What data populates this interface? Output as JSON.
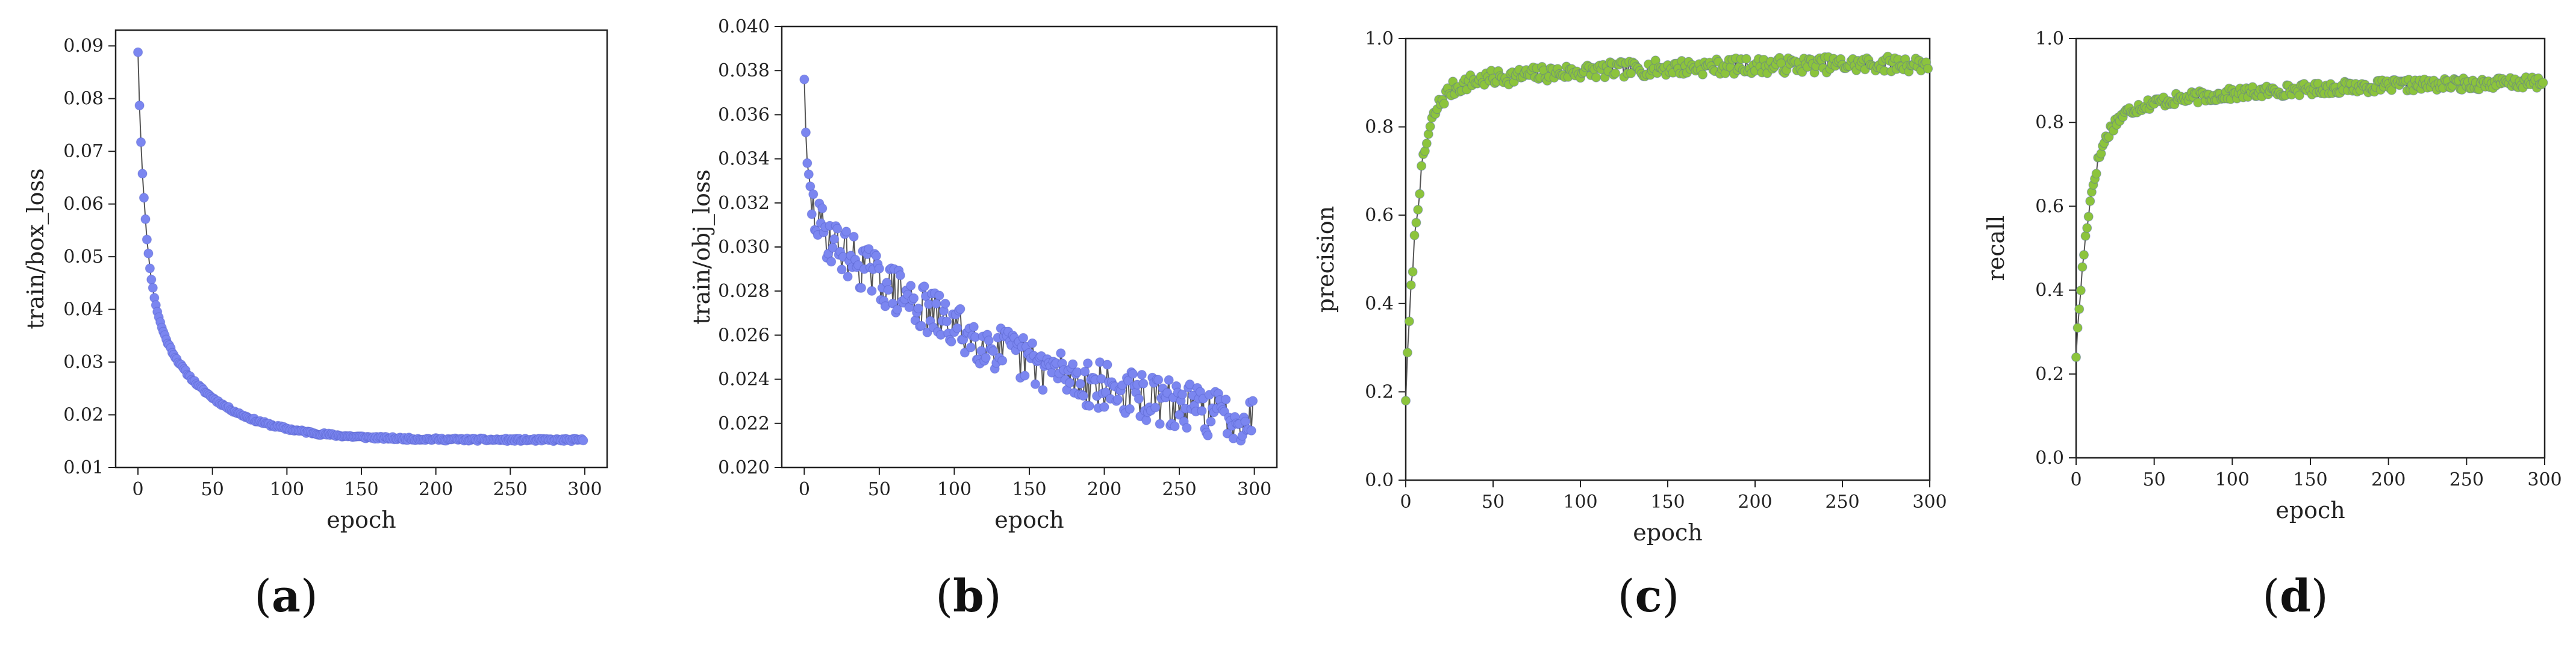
{
  "chart_data": [
    {
      "type": "line",
      "caption": "a",
      "xlabel": "epoch",
      "ylabel": "train/box_loss",
      "xlim": [
        -15,
        315
      ],
      "ylim": [
        0.01,
        0.093
      ],
      "xticks": [
        0,
        50,
        100,
        150,
        200,
        250,
        300
      ],
      "yticks": [
        "0.01",
        "0.02",
        "0.03",
        "0.04",
        "0.05",
        "0.06",
        "0.07",
        "0.08",
        "0.09"
      ],
      "marker_color": "#7b86f0",
      "line_color": "#555555",
      "curve": {
        "kind": "decay",
        "start": 0.0888,
        "end": 0.0168,
        "fast_amp": 0.042,
        "fast_tau": 5,
        "slow_amp": 0.03,
        "slow_tau": 38,
        "floor": 0.0152,
        "noise": 0.00025,
        "seed": 11
      },
      "series": [
        {
          "name": "train/box_loss",
          "x_range": [
            0,
            299
          ]
        }
      ]
    },
    {
      "type": "line",
      "caption": "b",
      "xlabel": "epoch",
      "ylabel": "train/obj_loss",
      "xlim": [
        -15,
        315
      ],
      "ylim": [
        0.02,
        0.04
      ],
      "xticks": [
        0,
        50,
        100,
        150,
        200,
        250,
        300
      ],
      "yticks": [
        "0.020",
        "0.022",
        "0.024",
        "0.026",
        "0.028",
        "0.030",
        "0.032",
        "0.034",
        "0.036",
        "0.038",
        "0.040"
      ],
      "marker_color": "#7b86f0",
      "line_color": "#555555",
      "curve": {
        "kind": "decay",
        "start": 0.0376,
        "end": 0.0222,
        "fast_amp": 0.004,
        "fast_tau": 3,
        "slow_amp": 0.011,
        "slow_tau": 160,
        "floor": 0.0205,
        "noise": 0.0011,
        "seed": 29
      },
      "series": [
        {
          "name": "train/obj_loss",
          "x_range": [
            0,
            299
          ]
        }
      ]
    },
    {
      "type": "line",
      "caption": "c",
      "xlabel": "epoch",
      "ylabel": "precision",
      "xlim": [
        0,
        300
      ],
      "ylim": [
        0.0,
        1.0
      ],
      "xticks": [
        0,
        50,
        100,
        150,
        200,
        250,
        300
      ],
      "yticks": [
        "0.0",
        "0.2",
        "0.4",
        "0.6",
        "0.8",
        "1.0"
      ],
      "marker_color": "#8cc43c",
      "line_color": "#555555",
      "curve": {
        "kind": "rise",
        "start": 0.18,
        "end": 0.945,
        "tau": 7,
        "slow_amp": 0.06,
        "slow_tau": 90,
        "noise": 0.018,
        "seed": 7
      },
      "series": [
        {
          "name": "precision",
          "x_range": [
            0,
            299
          ]
        }
      ]
    },
    {
      "type": "line",
      "caption": "d",
      "xlabel": "epoch",
      "ylabel": "recall",
      "xlim": [
        0,
        300
      ],
      "ylim": [
        0.0,
        1.0
      ],
      "xticks": [
        0,
        50,
        100,
        150,
        200,
        250,
        300
      ],
      "yticks": [
        "0.0",
        "0.2",
        "0.4",
        "0.6",
        "0.8",
        "1.0"
      ],
      "marker_color": "#8cc43c",
      "line_color": "#555555",
      "curve": {
        "kind": "rise",
        "start": 0.24,
        "end": 0.9,
        "tau": 9,
        "slow_amp": 0.08,
        "slow_tau": 110,
        "noise": 0.014,
        "seed": 17
      },
      "series": [
        {
          "name": "recall",
          "x_range": [
            0,
            299
          ]
        }
      ]
    }
  ]
}
